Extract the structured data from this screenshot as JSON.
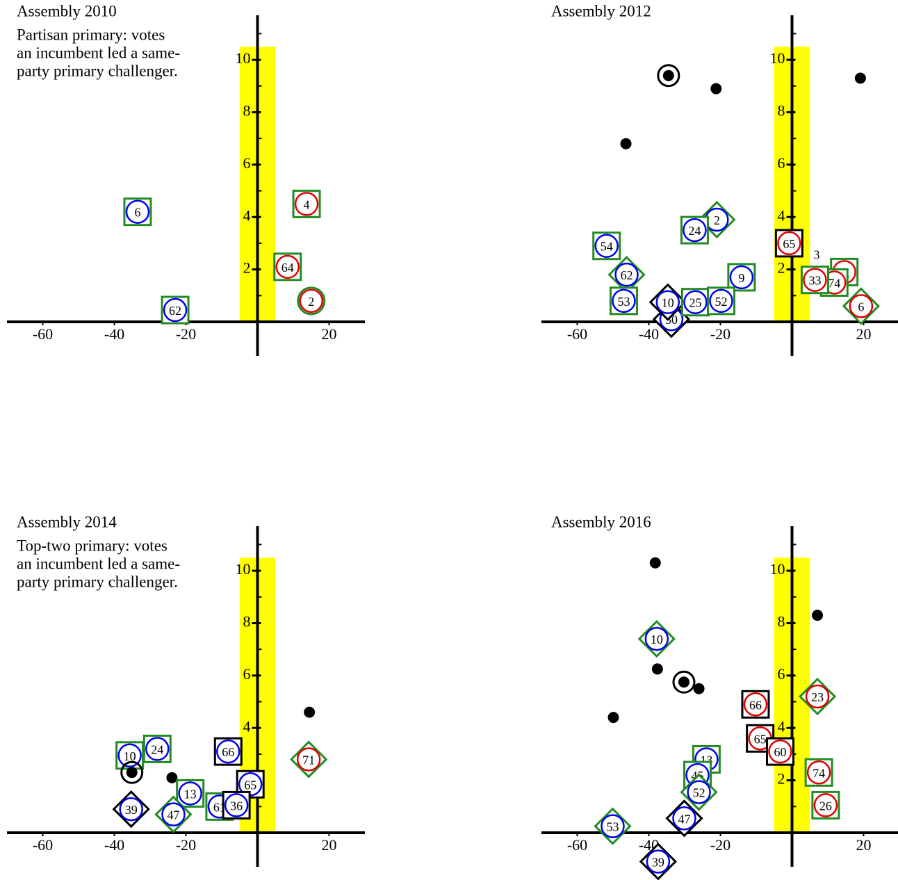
{
  "chart_data": [
    {
      "type": "scatter",
      "title": "Assembly 2010",
      "annotation": [
        "Partisan primary: votes",
        "an incumbent led a same-",
        "party primary challenger."
      ],
      "xlim": [
        -70,
        30
      ],
      "ylim": [
        -1.3,
        11.7
      ],
      "xticks": [
        -60,
        -40,
        -20,
        20
      ],
      "yticks": [
        2,
        4,
        6,
        8,
        10
      ],
      "yminor": [
        1,
        3,
        5,
        7,
        9,
        11
      ],
      "highlight": {
        "x": [
          -5,
          5
        ],
        "y": [
          0,
          10.5
        ],
        "color": "#ffff00"
      },
      "points": [
        {
          "x": -33.5,
          "y": 4.2,
          "label": "6",
          "color": "#0000ee",
          "shape": "square",
          "edge": "#228b22"
        },
        {
          "x": -23,
          "y": 0.45,
          "label": "62",
          "color": "#0000ee",
          "shape": "square",
          "edge": "#228b22"
        },
        {
          "x": 13.7,
          "y": 4.5,
          "label": "4",
          "color": "#e00000",
          "shape": "square",
          "edge": "#228b22"
        },
        {
          "x": 8.4,
          "y": 2.1,
          "label": "64",
          "color": "#e00000",
          "shape": "square",
          "edge": "#228b22"
        },
        {
          "x": 15,
          "y": 0.8,
          "label": "2",
          "color": "#e00000",
          "shape": "circle",
          "edge": "#228b22"
        }
      ]
    },
    {
      "type": "scatter",
      "title": "Assembly 2012",
      "xlim": [
        -70,
        30
      ],
      "ylim": [
        -1.3,
        11.7
      ],
      "xticks": [
        -60,
        -40,
        -20,
        20
      ],
      "yticks": [
        2,
        4,
        6,
        8,
        10
      ],
      "yminor": [
        1,
        3,
        5,
        7,
        9,
        11
      ],
      "highlight": {
        "x": [
          -5,
          5
        ],
        "y": [
          0,
          10.5
        ],
        "color": "#ffff00"
      },
      "points": [
        {
          "x": -34.5,
          "y": 9.4,
          "shape": "ring"
        },
        {
          "x": -21.2,
          "y": 8.9,
          "shape": "dot"
        },
        {
          "x": 19.1,
          "y": 9.3,
          "shape": "dot"
        },
        {
          "x": -46.4,
          "y": 6.8,
          "shape": "dot"
        },
        {
          "x": -21,
          "y": 3.9,
          "label": "2",
          "color": "#0000ee",
          "shape": "diamond",
          "edge": "#228b22"
        },
        {
          "x": -27.2,
          "y": 3.5,
          "label": "24",
          "color": "#0000ee",
          "shape": "square",
          "edge": "#228b22"
        },
        {
          "x": -51.8,
          "y": 2.9,
          "label": "54",
          "color": "#0000ee",
          "shape": "square",
          "edge": "#228b22"
        },
        {
          "x": -46.2,
          "y": 1.8,
          "label": "62",
          "color": "#0000ee",
          "shape": "diamond",
          "edge": "#228b22"
        },
        {
          "x": -14.1,
          "y": 1.7,
          "label": "9",
          "color": "#0000ee",
          "shape": "square",
          "edge": "#228b22"
        },
        {
          "x": -47,
          "y": 0.8,
          "label": "53",
          "color": "#0000ee",
          "shape": "square",
          "edge": "#228b22"
        },
        {
          "x": -33.7,
          "y": 0.1,
          "label": "50",
          "color": "#0000ee",
          "shape": "diamond",
          "edge": "#000000"
        },
        {
          "x": -34.7,
          "y": 0.75,
          "label": "10",
          "color": "#0000ee",
          "shape": "diamond",
          "edge": "#000000"
        },
        {
          "x": -27,
          "y": 0.75,
          "label": "25",
          "color": "#0000ee",
          "shape": "square",
          "edge": "#228b22"
        },
        {
          "x": -19.8,
          "y": 0.8,
          "label": "52",
          "color": "#0000ee",
          "shape": "square",
          "edge": "#228b22"
        },
        {
          "x": -0.8,
          "y": 3.0,
          "label": "65",
          "color": "#e00000",
          "shape": "square",
          "edge": "#000000"
        },
        {
          "x": 6.9,
          "y": 1.9,
          "label": "3",
          "shape": "small"
        },
        {
          "x": 14.6,
          "y": 1.9,
          "label": "71",
          "color": "#e00000",
          "shape": "square",
          "edge": "#228b22"
        },
        {
          "x": 11.8,
          "y": 1.5,
          "label": "74",
          "color": "#e00000",
          "shape": "square",
          "edge": "#228b22"
        },
        {
          "x": 6.4,
          "y": 1.6,
          "label": "33",
          "color": "#e00000",
          "shape": "square",
          "edge": "#228b22"
        },
        {
          "x": 19.3,
          "y": 0.6,
          "label": "6",
          "color": "#e00000",
          "shape": "diamond",
          "edge": "#228b22"
        }
      ]
    },
    {
      "type": "scatter",
      "title": "Assembly 2014",
      "annotation": [
        "Top-two primary: votes",
        "an incumbent led a same-",
        "party primary challenger."
      ],
      "xlim": [
        -70,
        30
      ],
      "ylim": [
        -1.3,
        11.7
      ],
      "xticks": [
        -60,
        -40,
        -20,
        20
      ],
      "yticks": [
        2,
        4,
        6,
        8,
        10
      ],
      "yminor": [
        1,
        3,
        5,
        7,
        9,
        11
      ],
      "highlight": {
        "x": [
          -5,
          5
        ],
        "y": [
          0,
          10.5
        ],
        "color": "#ffff00"
      },
      "points": [
        {
          "x": 14.5,
          "y": 4.6,
          "shape": "dot"
        },
        {
          "x": -35.7,
          "y": 2.95,
          "label": "10",
          "color": "#0000ee",
          "shape": "square",
          "edge": "#228b22"
        },
        {
          "x": -28,
          "y": 3.2,
          "label": "24",
          "color": "#0000ee",
          "shape": "square",
          "edge": "#228b22"
        },
        {
          "x": -35.1,
          "y": 2.3,
          "shape": "ring"
        },
        {
          "x": -23.9,
          "y": 2.1,
          "shape": "dot"
        },
        {
          "x": -18.8,
          "y": 1.5,
          "label": "13",
          "color": "#0000ee",
          "shape": "square",
          "edge": "#228b22"
        },
        {
          "x": -23.5,
          "y": 0.7,
          "label": "47",
          "color": "#0000ee",
          "shape": "diamond",
          "edge": "#228b22"
        },
        {
          "x": -35.3,
          "y": 0.9,
          "label": "39",
          "color": "#0000ee",
          "shape": "diamond",
          "edge": "#000000"
        },
        {
          "x": -8.2,
          "y": 3.1,
          "label": "66",
          "color": "#0000ee",
          "shape": "square",
          "edge": "#000000"
        },
        {
          "x": -2.0,
          "y": 1.85,
          "label": "65",
          "color": "#0000ee",
          "shape": "square",
          "edge": "#000000"
        },
        {
          "x": -10.6,
          "y": 1.0,
          "label": "61",
          "color": "#0000ee",
          "shape": "square",
          "edge": "#228b22"
        },
        {
          "x": -5.9,
          "y": 1.05,
          "label": "36",
          "color": "#0000ee",
          "shape": "square",
          "edge": "#000000"
        },
        {
          "x": 14.3,
          "y": 2.8,
          "label": "71",
          "color": "#e00000",
          "shape": "diamond",
          "edge": "#228b22"
        }
      ]
    },
    {
      "type": "scatter",
      "title": "Assembly 2016",
      "xlim": [
        -70,
        30
      ],
      "ylim": [
        -1.3,
        11.7
      ],
      "xticks": [
        -60,
        -40,
        -20,
        20
      ],
      "yticks": [
        2,
        4,
        6,
        8,
        10
      ],
      "yminor": [
        1,
        3,
        5,
        7,
        9,
        11
      ],
      "highlight": {
        "x": [
          -5,
          5
        ],
        "y": [
          0,
          10.5
        ],
        "color": "#ffff00"
      },
      "points": [
        {
          "x": -38.2,
          "y": 10.3,
          "shape": "dot"
        },
        {
          "x": 7.1,
          "y": 8.3,
          "shape": "dot"
        },
        {
          "x": -37.6,
          "y": 6.25,
          "shape": "dot"
        },
        {
          "x": -30.2,
          "y": 5.75,
          "shape": "ring"
        },
        {
          "x": -26,
          "y": 5.5,
          "shape": "dot"
        },
        {
          "x": -49.9,
          "y": 4.4,
          "shape": "dot"
        },
        {
          "x": -37.8,
          "y": 7.4,
          "label": "10",
          "color": "#0000ee",
          "shape": "diamond",
          "edge": "#228b22"
        },
        {
          "x": 7.1,
          "y": 5.2,
          "label": "23",
          "color": "#e00000",
          "shape": "diamond",
          "edge": "#228b22"
        },
        {
          "x": -10.2,
          "y": 4.9,
          "label": "66",
          "color": "#e00000",
          "shape": "square",
          "edge": "#000000"
        },
        {
          "x": -8.9,
          "y": 3.6,
          "label": "65",
          "color": "#e00000",
          "shape": "square",
          "edge": "#000000"
        },
        {
          "x": -3.3,
          "y": 3.1,
          "label": "60",
          "color": "#e00000",
          "shape": "square",
          "edge": "#000000"
        },
        {
          "x": -23.9,
          "y": 2.8,
          "label": "13",
          "color": "#0000ee",
          "shape": "square",
          "edge": "#228b22"
        },
        {
          "x": -26.4,
          "y": 2.2,
          "label": "45",
          "color": "#0000ee",
          "shape": "square",
          "edge": "#228b22"
        },
        {
          "x": -26,
          "y": 1.55,
          "label": "52",
          "color": "#0000ee",
          "shape": "diamond",
          "edge": "#228b22"
        },
        {
          "x": 7.5,
          "y": 2.3,
          "label": "74",
          "color": "#e00000",
          "shape": "square",
          "edge": "#228b22"
        },
        {
          "x": 9.4,
          "y": 1.05,
          "label": "26",
          "color": "#e00000",
          "shape": "square",
          "edge": "#228b22"
        },
        {
          "x": -30.1,
          "y": 0.55,
          "label": "47",
          "color": "#0000ee",
          "shape": "diamond",
          "edge": "#000000"
        },
        {
          "x": -50.1,
          "y": 0.25,
          "label": "53",
          "color": "#0000ee",
          "shape": "diamond",
          "edge": "#228b22"
        },
        {
          "x": -37.4,
          "y": -1.1,
          "label": "39",
          "color": "#0000ee",
          "shape": "diamond",
          "edge": "#000000"
        }
      ]
    }
  ]
}
